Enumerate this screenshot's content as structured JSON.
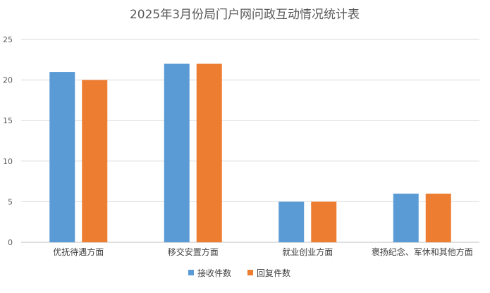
{
  "chart_data": {
    "type": "bar",
    "title": "2025年3月份局门户网问政互动情况统计表",
    "categories": [
      "优抚待遇方面",
      "移交安置方面",
      "就业创业方面",
      "褒扬纪念、军休和其他方面"
    ],
    "series": [
      {
        "name": "接收件数",
        "values": [
          21,
          22,
          5,
          6
        ],
        "color": "#5b9bd5"
      },
      {
        "name": "回复件数",
        "values": [
          20,
          22,
          5,
          6
        ],
        "color": "#ed7d31"
      }
    ],
    "ylim": [
      0,
      25
    ],
    "yticks": [
      0,
      5,
      10,
      15,
      20,
      25
    ],
    "grid": true,
    "legend_position": "bottom"
  }
}
